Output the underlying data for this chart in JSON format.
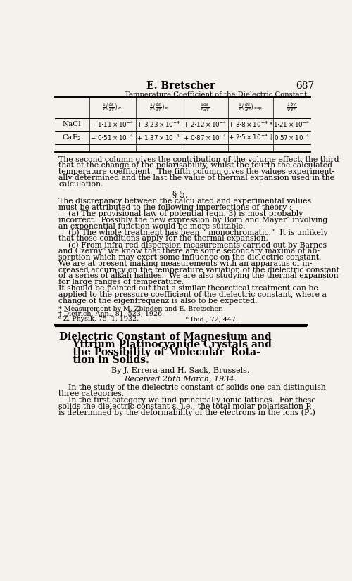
{
  "bg_color": "#f5f2ed",
  "header_line1": "E. Bretscher",
  "header_page": "687",
  "table_title": "Temperature Coefficient of the Dielectric Constant.",
  "col_headers": [
    "$\\frac{1}{\\epsilon}\\left(\\frac{\\partial\\epsilon}{\\partial T}\\right)_w$",
    "$\\frac{1}{\\epsilon}\\left(\\frac{\\partial\\epsilon}{\\partial T}\\right)_p$",
    "$\\frac{1}{\\epsilon}\\frac{d\\epsilon}{dT}$",
    "$\\frac{1}{\\epsilon}\\left(\\frac{d\\epsilon}{dT}\\right)_{\\mathrm{exp.}}$",
    "$\\frac{1}{V}\\frac{\\partial V}{\\partial T}$"
  ],
  "row_labels": [
    "NaCl",
    "CaF$_2$"
  ],
  "row_data": [
    [
      "$-\\ 1{\\cdot}11 \\times 10^{-4}$",
      "$+\\ 3{\\cdot}23 \\times 10^{-4}$",
      "$+\\ 2{\\cdot}12 \\times 10^{-4}$",
      "$+\\ 3{\\cdot}8 \\times 10^{-4}$ *",
      "$1{\\cdot}21 \\times 10^{-4}$"
    ],
    [
      "$-\\ 0{\\cdot}51 \\times 10^{-4}$",
      "$+\\ 1{\\cdot}37 \\times 10^{-4}$",
      "$+\\ 0{\\cdot}87 \\times 10^{-4}$",
      "$+\\ 2{\\cdot}5 \\times 10^{-4}$ †",
      "$0{\\cdot}57 \\times 10^{-4}$"
    ]
  ],
  "lines1": [
    "The second column gives the contribution of the volume effect, the third",
    "that of the change of the polarisability, whilst the fourth the calculated",
    "temperature coefficient.  The fifth column gives the values experiment-",
    "ally determined and the last the value of thermal expansion used in the",
    "calculation."
  ],
  "section": "§ 5.",
  "para2": [
    "The discrepancy between the calculated and experimental values",
    "must be attributed to the following imperfections of theory :—",
    "    (a) The provisional law of potential (eqn. 3) is most probably",
    "incorrect.  Possibly the new expression by Born and Mayer⁵ involving",
    "an exponential function would be more suitable.",
    "    (b) The whole treatment has been “ monochromatic.”  It is unlikely",
    "that those conditions apply for the thermal expansion.",
    "    (c) From infra-red dispersion measurements carried out by Barnes",
    "and Czerny⁶ we know that there are some secondary maxima of ab-",
    "sorption which may exert some influence on the dielectric constant.",
    "We are at present making measurements with an apparatus of in-",
    "creased accuracy on the temperature variation of the dielectric constant",
    "of a series of alkali halides.  We are also studying the thermal expansion",
    "for large ranges of temperature.",
    "It should be pointed out that a similar theoretical treatment can be",
    "applied to the pressure coefficient of the dielectric constant, where a",
    "change of the eigenfrequenz is also to be expected."
  ],
  "footnotes": [
    "* Measurement by M. Zbinden and E. Bretscher.",
    "† Dietrich, Ann., 81, 523, 1926.",
    "⁶ Z. Physik, 75, 1, 1932."
  ],
  "footnote_right": "⁶ Ibid., 72, 447.",
  "title_lines": [
    "Dielectric Constant of Magnesium and",
    "    Yttrium Platinocyanide Crystals and",
    "    the Possibility of Molecular  Rota-",
    "    tion in Solids."
  ],
  "byline": "By J. Errera and H. Sack, Brussels.",
  "received": "Received 26th March, 1934.",
  "intro_lines": [
    "    In the study of the dielectric constant of solids one can distinguish",
    "three categories.",
    "    In the first category we find principally ionic lattices.  For these",
    "solids the dielectric constant ε, i.e., the total molar polarisation P,",
    "is determined by the deformability of the electrons in the ions (Pₑ)"
  ]
}
